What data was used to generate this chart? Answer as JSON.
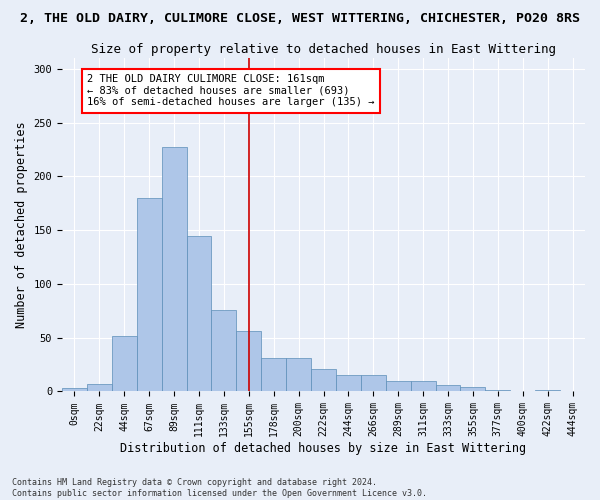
{
  "title": "2, THE OLD DAIRY, CULIMORE CLOSE, WEST WITTERING, CHICHESTER, PO20 8RS",
  "subtitle": "Size of property relative to detached houses in East Wittering",
  "xlabel": "Distribution of detached houses by size in East Wittering",
  "ylabel": "Number of detached properties",
  "footer_line1": "Contains HM Land Registry data © Crown copyright and database right 2024.",
  "footer_line2": "Contains public sector information licensed under the Open Government Licence v3.0.",
  "bin_labels": [
    "0sqm",
    "22sqm",
    "44sqm",
    "67sqm",
    "89sqm",
    "111sqm",
    "133sqm",
    "155sqm",
    "178sqm",
    "200sqm",
    "222sqm",
    "244sqm",
    "266sqm",
    "289sqm",
    "311sqm",
    "333sqm",
    "355sqm",
    "377sqm",
    "400sqm",
    "422sqm",
    "444sqm"
  ],
  "bar_heights": [
    3,
    7,
    52,
    180,
    227,
    145,
    76,
    56,
    31,
    31,
    21,
    15,
    15,
    10,
    10,
    6,
    4,
    1,
    0,
    1,
    0
  ],
  "bar_color": "#aec6e8",
  "bar_edge_color": "#5b8db8",
  "vline_x": 7.0,
  "annotation_text": "2 THE OLD DAIRY CULIMORE CLOSE: 161sqm\n← 83% of detached houses are smaller (693)\n16% of semi-detached houses are larger (135) →",
  "annotation_box_color": "white",
  "annotation_box_edge": "red",
  "vline_color": "#cc0000",
  "ylim": [
    0,
    310
  ],
  "yticks": [
    0,
    50,
    100,
    150,
    200,
    250,
    300
  ],
  "background_color": "#e8eef8",
  "grid_color": "white",
  "title_fontsize": 9.5,
  "subtitle_fontsize": 9,
  "axis_label_fontsize": 8.5,
  "tick_fontsize": 7,
  "footer_fontsize": 6,
  "annotation_fontsize": 7.5
}
